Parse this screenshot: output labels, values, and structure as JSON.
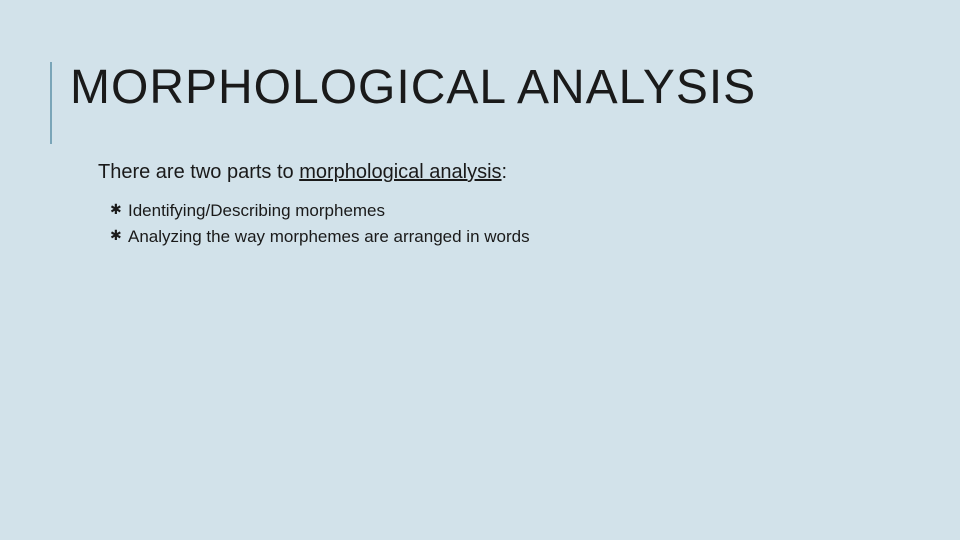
{
  "slide": {
    "background_color": "#d2e2ea",
    "title_rule_color": "#7aa5b8",
    "text_color": "#1a1a1a",
    "title": "MORPHOLOGICAL ANALYSIS",
    "title_fontsize": 48,
    "intro_prefix": "There are two parts to ",
    "intro_underlined": "morphological analysis",
    "intro_suffix": ":",
    "intro_fontsize": 20,
    "bullet_icon": "✱",
    "bullet_fontsize": 17,
    "bullets": [
      "Identifying/Describing morphemes",
      "Analyzing the way morphemes are arranged in words"
    ]
  }
}
